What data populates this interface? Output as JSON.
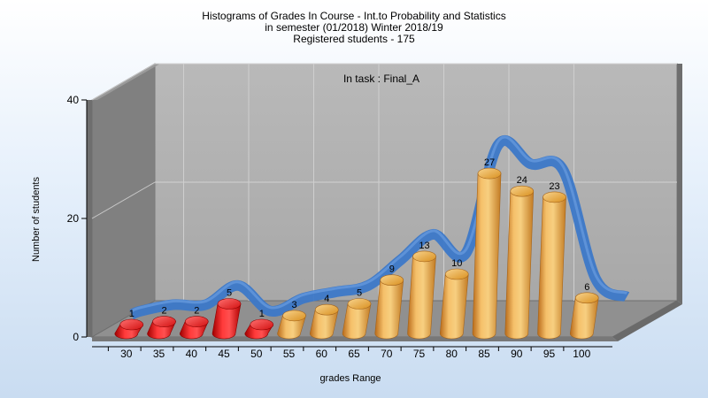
{
  "title_lines": [
    "Histograms of Grades  In Course - Int.to Probability and Statistics",
    "in semester  (01/2018) Winter 2018/19",
    "Registered students - 175"
  ],
  "annotation": "In task : Final_A",
  "chart_data": {
    "type": "bar",
    "categories": [
      "30",
      "35",
      "40",
      "45",
      "50",
      "55",
      "60",
      "65",
      "70",
      "75",
      "80",
      "85",
      "90",
      "95",
      "100"
    ],
    "values": [
      1,
      2,
      2,
      5,
      1,
      3,
      4,
      5,
      9,
      13,
      10,
      27,
      24,
      23,
      6
    ],
    "xlabel": "grades Range",
    "ylabel": "Number of students",
    "ylim": [
      0,
      40
    ],
    "yticks": [
      "0",
      "20",
      "40"
    ],
    "grid": true,
    "bar_colors": {
      "failing": "#e01010",
      "passing": "#f0a63c"
    },
    "failing_categories": [
      "30",
      "35",
      "40",
      "45",
      "50"
    ],
    "trend_line": {
      "type": "smoothed-distribution-ribbon",
      "color": "#3c78c8"
    }
  }
}
